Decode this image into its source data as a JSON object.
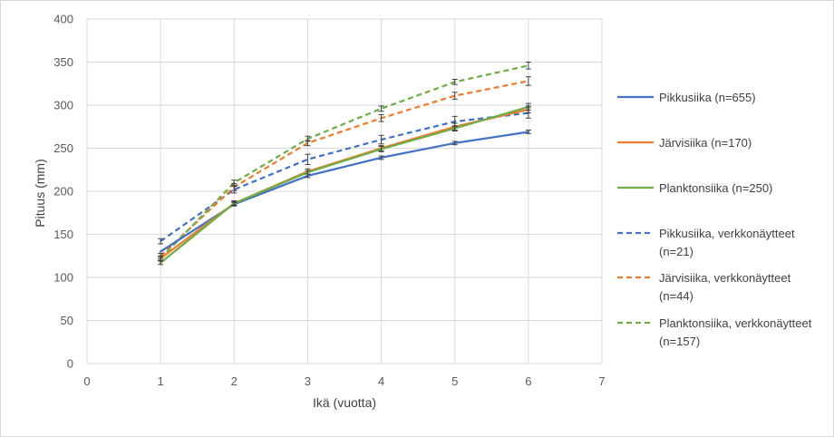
{
  "chart_data": {
    "type": "line",
    "xlabel": "Ikä (vuotta)",
    "ylabel": "Pituus (mm)",
    "xlim": [
      0,
      7
    ],
    "ylim": [
      0,
      400
    ],
    "x_ticks": [
      0,
      1,
      2,
      3,
      4,
      5,
      6,
      7
    ],
    "y_ticks": [
      0,
      50,
      100,
      150,
      200,
      250,
      300,
      350,
      400
    ],
    "grid": true,
    "legend_position": "right",
    "series": [
      {
        "name": "Pikkusiika (n=655)",
        "legend_lines": [
          "Pikkusiika (n=655)"
        ],
        "color": "#4472c4",
        "dash": "solid",
        "x": [
          1,
          2,
          3,
          4,
          5,
          6
        ],
        "values": [
          130,
          185,
          218,
          239,
          256,
          269
        ],
        "errors": [
          0,
          2,
          2,
          2,
          2,
          2
        ]
      },
      {
        "name": "Järvisiika (n=170)",
        "legend_lines": [
          "Järvisiika (n=170)"
        ],
        "color": "#ed7d31",
        "dash": "solid",
        "x": [
          1,
          2,
          3,
          4,
          5,
          6
        ],
        "values": [
          122,
          186,
          223,
          250,
          275,
          295
        ],
        "errors": [
          3,
          3,
          3,
          3,
          4,
          4
        ]
      },
      {
        "name": "Planktonsiika (n=250)",
        "legend_lines": [
          "Planktonsiika (n=250)"
        ],
        "color": "#70ad47",
        "dash": "solid",
        "x": [
          1,
          2,
          3,
          4,
          5,
          6
        ],
        "values": [
          117,
          186,
          222,
          249,
          273,
          298
        ],
        "errors": [
          2,
          2,
          2,
          3,
          3,
          4
        ]
      },
      {
        "name": "Pikkusiika, verkkonäytteet (n=21)",
        "legend_lines": [
          "Pikkusiika, verkkonäytteet",
          "(n=21)"
        ],
        "color": "#4472c4",
        "dash": "dashed",
        "x": [
          1,
          2,
          3,
          4,
          5,
          6
        ],
        "values": [
          142,
          202,
          237,
          260,
          281,
          291
        ],
        "errors": [
          3,
          4,
          6,
          5,
          6,
          6
        ]
      },
      {
        "name": "Järvisiika, verkkonäytteet (n=44)",
        "legend_lines": [
          "Järvisiika, verkkonäytteet",
          "(n=44)"
        ],
        "color": "#ed7d31",
        "dash": "dashed",
        "x": [
          1,
          2,
          3,
          4,
          5,
          6
        ],
        "values": [
          125,
          205,
          256,
          285,
          311,
          328
        ],
        "errors": [
          3,
          4,
          3,
          4,
          4,
          5
        ]
      },
      {
        "name": "Planktonsiika, verkkonäytteet (n=157)",
        "legend_lines": [
          "Planktonsiika, verkkonäytteet",
          "(n=157)"
        ],
        "color": "#70ad47",
        "dash": "dashed",
        "x": [
          1,
          2,
          3,
          4,
          5,
          6
        ],
        "values": [
          122,
          210,
          261,
          296,
          327,
          346
        ],
        "errors": [
          2,
          3,
          3,
          3,
          3,
          4
        ]
      }
    ]
  }
}
